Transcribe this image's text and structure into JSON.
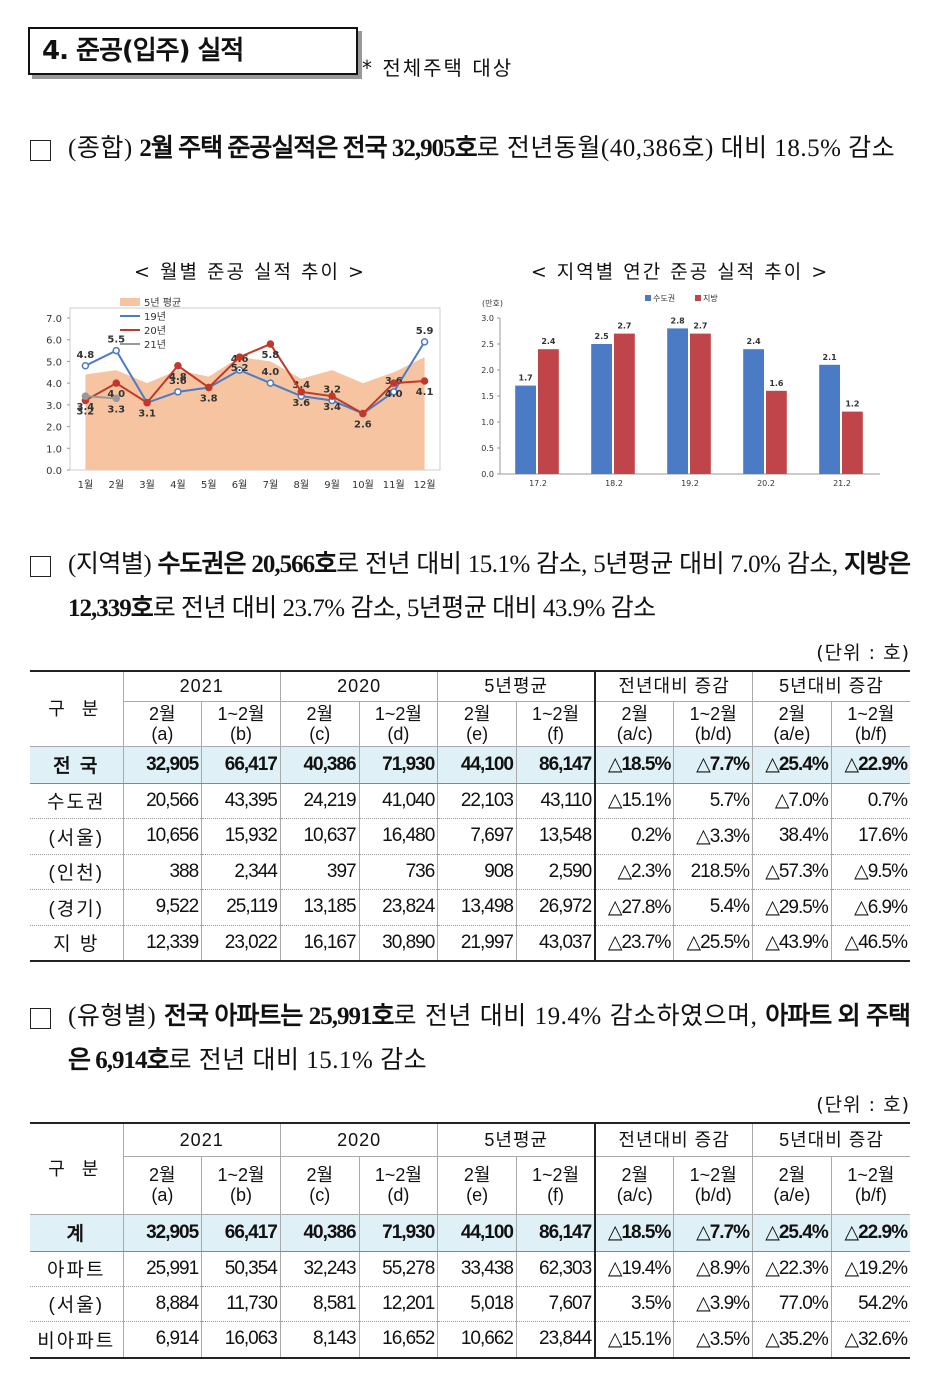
{
  "header": {
    "title": "4. 준공(입주) 실적",
    "note": "* 전체주택 대상"
  },
  "paragraphs": [
    [
      {
        "text": "(종합) "
      },
      {
        "text": "2월 주택 준공실적은 전국 32,905호",
        "bold": true
      },
      {
        "text": "로 전년동월(40,386호) 대비 18.5% 감소"
      }
    ],
    [
      {
        "text": "(지역별) "
      },
      {
        "text": "수도권은 20,566호",
        "bold": true
      },
      {
        "text": "로 전년 대비 15.1% 감소, 5년평균 대비 7.0% 감소, "
      },
      {
        "text": "지방은 12,339호",
        "bold": true
      },
      {
        "text": "로 전년 대비 23.7% 감소, 5년평균 대비 43.9% 감소"
      }
    ],
    [
      {
        "text": "(유형별) "
      },
      {
        "text": "전국 아파트는 25,991호",
        "bold": true
      },
      {
        "text": "로 전년 대비 19.4% 감소하였으며, "
      },
      {
        "text": "아파트 외 주택은 6,914호",
        "bold": true
      },
      {
        "text": "로 전년 대비 15.1% 감소"
      }
    ]
  ],
  "chart_data": [
    {
      "type": "line",
      "title": "< 월별 준공 실적 추이 >",
      "categories": [
        "1월",
        "2월",
        "3월",
        "4월",
        "5월",
        "6월",
        "7월",
        "8월",
        "9월",
        "10월",
        "11월",
        "12월"
      ],
      "ylim": [
        0,
        7
      ],
      "yticks": [
        {
          "value": 0,
          "label": "0.0"
        },
        {
          "value": 1,
          "label": "1.0"
        },
        {
          "value": 2,
          "label": "2.0"
        },
        {
          "value": 3,
          "label": "3.0"
        },
        {
          "value": 4,
          "label": "4.0"
        },
        {
          "value": 5,
          "label": "5.0"
        },
        {
          "value": 6,
          "label": "6.0"
        },
        {
          "value": 7,
          "label": "7.0"
        }
      ],
      "legend": "top-left",
      "series": [
        {
          "name": "5년 평균",
          "style": "area",
          "color": "#f7c4a2",
          "values": [
            4.4,
            4.6,
            4.0,
            4.6,
            4.3,
            5.2,
            5.0,
            4.2,
            4.6,
            4.0,
            4.5,
            5.2
          ]
        },
        {
          "name": "19년",
          "color": "#4a7bc4",
          "values": [
            4.8,
            5.5,
            3.1,
            3.6,
            3.8,
            4.6,
            4.0,
            3.4,
            3.2,
            2.6,
            3.6,
            5.9
          ],
          "value_labels": [
            "4.8",
            "5.5",
            null,
            "3.6",
            null,
            "4.6",
            "4.0",
            "3.4",
            "3.2",
            null,
            "3.6",
            "5.9"
          ]
        },
        {
          "name": "20년",
          "color": "#c0392b",
          "values": [
            3.2,
            4.0,
            3.1,
            4.8,
            3.8,
            5.2,
            5.8,
            3.6,
            3.4,
            2.6,
            4.0,
            4.1
          ],
          "value_labels": [
            "3.2",
            "4.0",
            "3.1",
            "4.8",
            "3.8",
            "5.2",
            "5.8",
            "3.6",
            "3.4",
            "2.6",
            "4.0",
            "4.1"
          ]
        },
        {
          "name": "21년",
          "color": "#999999",
          "values": [
            3.4,
            3.3,
            null,
            null,
            null,
            null,
            null,
            null,
            null,
            null,
            null,
            null
          ],
          "value_labels": [
            "3.4",
            "3.3",
            null,
            null,
            null,
            null,
            null,
            null,
            null,
            null,
            null,
            null
          ]
        }
      ]
    },
    {
      "type": "bar",
      "title": "< 지역별 연간 준공 실적 추이 >",
      "y_unit": "(만호)",
      "categories": [
        "17.2",
        "18.2",
        "19.2",
        "20.2",
        "21.2"
      ],
      "ylim": [
        0,
        3
      ],
      "yticks": [
        {
          "value": 0,
          "label": "0.0"
        },
        0.5,
        {
          "value": 1,
          "label": "1.0"
        },
        1.5,
        {
          "value": 2,
          "label": "2.0"
        },
        2.5,
        {
          "value": 3,
          "label": "3.0"
        }
      ],
      "legend": "top",
      "series": [
        {
          "name": "수도권",
          "color": "#4a7bc4",
          "values": [
            1.7,
            2.5,
            2.8,
            2.4,
            2.1
          ]
        },
        {
          "name": "지방",
          "color": "#c0454a",
          "values": [
            2.4,
            2.7,
            2.7,
            1.6,
            1.2
          ]
        }
      ]
    }
  ],
  "tables": [
    {
      "unit": "(단위 : 호)",
      "corner": "구 분",
      "groups": [
        "2021",
        "2020",
        "5년평균",
        "전년대비 증감",
        "5년대비 증감"
      ],
      "subheads": [
        [
          "2월",
          "(a)"
        ],
        [
          "1~2월",
          "(b)"
        ],
        [
          "2월",
          "(c)"
        ],
        [
          "1~2월",
          "(d)"
        ],
        [
          "2월",
          "(e)"
        ],
        [
          "1~2월",
          "(f)"
        ],
        [
          "2월",
          "(a/c)"
        ],
        [
          "1~2월",
          "(b/d)"
        ],
        [
          "2월",
          "(a/e)"
        ],
        [
          "1~2월",
          "(b/f)"
        ]
      ],
      "rows": [
        [
          "전 국",
          "32,905",
          "66,417",
          "40,386",
          "71,930",
          "44,100",
          "86,147",
          "△18.5%",
          "△7.7%",
          "△25.4%",
          "△22.9%"
        ],
        [
          "수도권",
          "20,566",
          "43,395",
          "24,219",
          "41,040",
          "22,103",
          "43,110",
          "△15.1%",
          "5.7%",
          "△7.0%",
          "0.7%"
        ],
        [
          "(서울)",
          "10,656",
          "15,932",
          "10,637",
          "16,480",
          "7,697",
          "13,548",
          "0.2%",
          "△3.3%",
          "38.4%",
          "17.6%"
        ],
        [
          "(인천)",
          "388",
          "2,344",
          "397",
          "736",
          "908",
          "2,590",
          "△2.3%",
          "218.5%",
          "△57.3%",
          "△9.5%"
        ],
        [
          "(경기)",
          "9,522",
          "25,119",
          "13,185",
          "23,824",
          "13,498",
          "26,972",
          "△27.8%",
          "5.4%",
          "△29.5%",
          "△6.9%"
        ],
        [
          "지 방",
          "12,339",
          "23,022",
          "16,167",
          "30,890",
          "21,997",
          "43,037",
          "△23.7%",
          "△25.5%",
          "△43.9%",
          "△46.5%"
        ]
      ]
    },
    {
      "unit": "(단위 : 호)",
      "corner": "구 분",
      "groups": [
        "2021",
        "2020",
        "5년평균",
        "전년대비 증감",
        "5년대비 증감"
      ],
      "subheads": [
        [
          "2월",
          "(a)"
        ],
        [
          "1~2월",
          "(b)"
        ],
        [
          "2월",
          "(c)"
        ],
        [
          "1~2월",
          "(d)"
        ],
        [
          "2월",
          "(e)"
        ],
        [
          "1~2월",
          "(f)"
        ],
        [
          "2월",
          "(a/c)"
        ],
        [
          "1~2월",
          "(b/d)"
        ],
        [
          "2월",
          "(a/e)"
        ],
        [
          "1~2월",
          "(b/f)"
        ]
      ],
      "rows": [
        [
          "계",
          "32,905",
          "66,417",
          "40,386",
          "71,930",
          "44,100",
          "86,147",
          "△18.5%",
          "△7.7%",
          "△25.4%",
          "△22.9%"
        ],
        [
          "아파트",
          "25,991",
          "50,354",
          "32,243",
          "55,278",
          "33,438",
          "62,303",
          "△19.4%",
          "△8.9%",
          "△22.3%",
          "△19.2%"
        ],
        [
          "(서울)",
          "8,884",
          "11,730",
          "8,581",
          "12,201",
          "5,018",
          "7,607",
          "3.5%",
          "△3.9%",
          "77.0%",
          "54.2%"
        ],
        [
          "비아파트",
          "6,914",
          "16,063",
          "8,143",
          "16,652",
          "10,662",
          "23,844",
          "△15.1%",
          "△3.5%",
          "△35.2%",
          "△32.6%"
        ]
      ]
    }
  ]
}
